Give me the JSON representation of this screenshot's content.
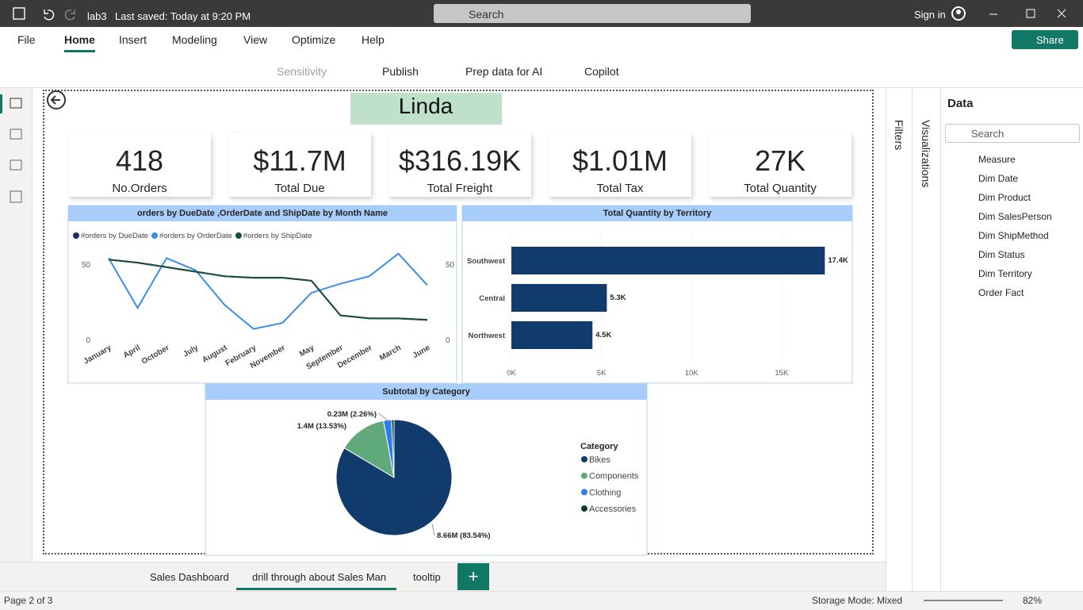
{
  "app": {
    "file_name": "lab3",
    "saved": "Last saved: Today at 9:20 PM",
    "search": "Search",
    "sign_in": "Sign in",
    "menu": [
      "File",
      "Home",
      "Insert",
      "Modeling",
      "View",
      "Optimize",
      "Help"
    ],
    "share": "Share",
    "ribbon": [
      "Sensitivity",
      "Publish",
      "Prep data for AI",
      "Copilot"
    ],
    "filters": "Filters",
    "visualizations": "Visualizations",
    "data_pane": {
      "title": "Data",
      "search": "Search",
      "tables": [
        "Measure",
        "Dim Date",
        "Dim Product",
        "Dim SalesPerson",
        "Dim ShipMethod",
        "Dim Status",
        "Dim Territory",
        "Order Fact"
      ]
    },
    "tabs": [
      "Sales Dashboard",
      "drill through about Sales Man",
      "tooltip"
    ],
    "status": {
      "page": "Page 2 of 3",
      "storage": "Storage Mode: Mixed",
      "zoom": "82%"
    }
  },
  "report": {
    "heading": "Linda",
    "cards": [
      {
        "value": "418",
        "label": "No.Orders"
      },
      {
        "value": "$11.7M",
        "label": "Total Due"
      },
      {
        "value": "$316.19K",
        "label": "Total Freight"
      },
      {
        "value": "$1.01M",
        "label": "Total Tax"
      },
      {
        "value": "27K",
        "label": "Total Quantity"
      }
    ]
  },
  "chart_data": [
    {
      "type": "line",
      "title": "orders by DueDate ,OrderDate and ShipDate by Month Name",
      "categories": [
        "January",
        "April",
        "October",
        "July",
        "August",
        "February",
        "November",
        "May",
        "September",
        "December",
        "March",
        "June"
      ],
      "series": [
        {
          "name": "#orders by DueDate",
          "color": "#1a3263",
          "values": [
            53,
            51,
            48,
            45,
            42,
            41,
            41,
            39,
            16,
            14,
            14,
            13
          ]
        },
        {
          "name": "#orders by OrderDate",
          "color": "#3a8ee6",
          "values": [
            54,
            21,
            54,
            46,
            23,
            7,
            11,
            31,
            37,
            42,
            57,
            36
          ]
        },
        {
          "name": "#orders by ShipDate",
          "color": "#1b4d3e",
          "axis": "y2",
          "values": [
            53,
            51,
            48,
            45,
            42,
            41,
            41,
            39,
            16,
            14,
            14,
            13
          ]
        }
      ],
      "ylim": [
        0,
        60
      ],
      "yticks": [
        0,
        50
      ],
      "y2lim": [
        0,
        60
      ],
      "y2ticks": [
        0,
        50
      ],
      "legend": "top-left"
    },
    {
      "type": "hbar",
      "title": "Total Quantity by Territory",
      "categories": [
        "Southwest",
        "Central",
        "Northwest"
      ],
      "values": [
        17400,
        5300,
        4500
      ],
      "value_labels": [
        "17.4K",
        "5.3K",
        "4.5K"
      ],
      "color": "#123b6d",
      "xlim": [
        0,
        18000
      ],
      "xticks": [
        {
          "value": 0,
          "label": "0K"
        },
        {
          "value": 5000,
          "label": "5K"
        },
        {
          "value": 10000,
          "label": "10K"
        },
        {
          "value": 15000,
          "label": "15K"
        }
      ],
      "grid": true
    },
    {
      "type": "pie",
      "title": "Subtotal by Category",
      "legend_title": "Category",
      "categories": [
        "Bikes",
        "Components",
        "Clothing",
        "Accessories"
      ],
      "values": [
        83.54,
        13.53,
        2.26,
        0.67
      ],
      "value_labels": [
        "8.66M (83.54%)",
        "1.4M (13.53%)",
        "0.23M (2.26%)",
        null
      ],
      "colors": [
        "#123b6d",
        "#5fa97a",
        "#2b7de9",
        "#0d3b2e"
      ],
      "legend": "right"
    }
  ]
}
